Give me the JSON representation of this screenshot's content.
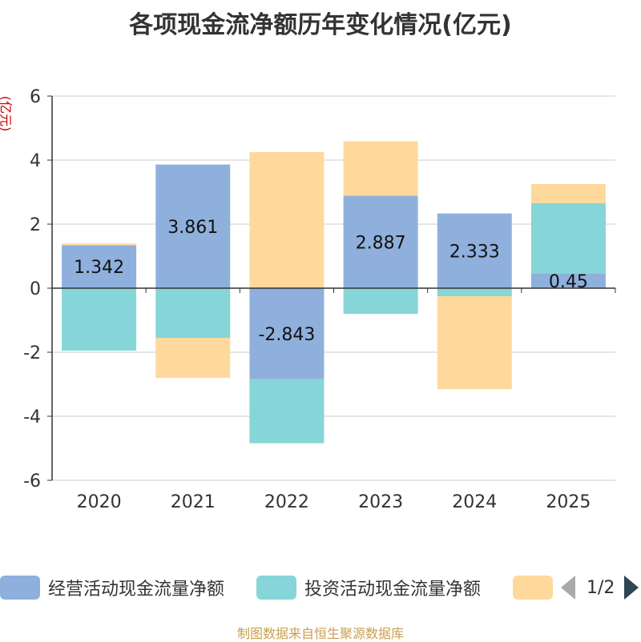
{
  "title": "各项现金流净额历年变化情况(亿元)",
  "source": "制图数据来自恒生聚源数据库",
  "legend": {
    "operating": "经营活动现金流量净额",
    "investing": "投资活动现金流量净额",
    "page": "1/2"
  },
  "colors": {
    "operating": "#8fb0dc",
    "investing": "#86d5d8",
    "financing": "#fed99b"
  },
  "chart_data": {
    "type": "bar",
    "stacked": true,
    "title": "各项现金流净额历年变化情况(亿元)",
    "ylabel": "(亿元)",
    "xlabel": "",
    "ylim": [
      -6,
      6
    ],
    "yticks": [
      -6,
      -4,
      -2,
      0,
      2,
      4,
      6
    ],
    "categories": [
      "2020",
      "2021",
      "2022",
      "2023",
      "2024",
      "2025"
    ],
    "series": [
      {
        "name": "经营活动现金流量净额",
        "key": "operating",
        "values": [
          1.342,
          3.861,
          -2.843,
          2.887,
          2.333,
          0.45
        ],
        "labels": [
          "1.342",
          "3.861",
          "-2.843",
          "2.887",
          "2.333",
          "0.45"
        ]
      },
      {
        "name": "投资活动现金流量净额",
        "key": "investing",
        "values": [
          -1.95,
          -1.55,
          -2.0,
          -0.8,
          -0.25,
          2.2
        ]
      },
      {
        "name": "",
        "key": "financing",
        "values": [
          0.05,
          -1.25,
          4.25,
          1.7,
          -2.9,
          0.6
        ]
      }
    ]
  }
}
